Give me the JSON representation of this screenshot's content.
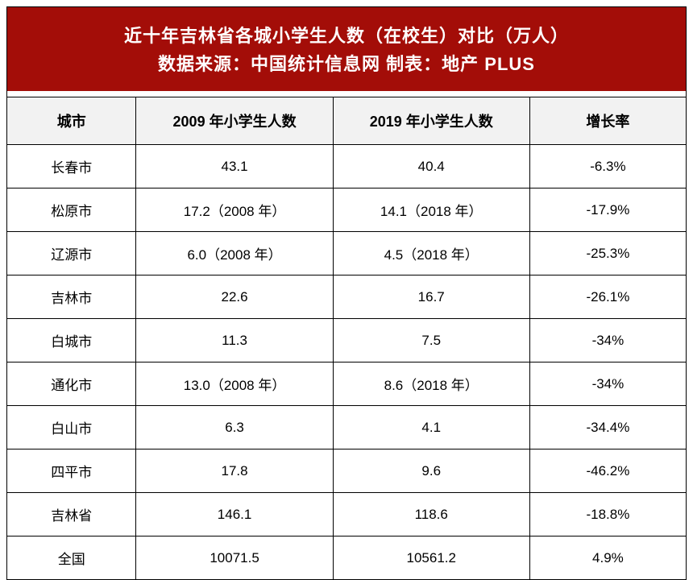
{
  "header": {
    "title_line1": "近十年吉林省各城小学生人数（在校生）对比（万人）",
    "title_line2": "数据来源：中国统计信息网 制表：地产 PLUS",
    "background_color": "#a30d08",
    "text_color": "#ffffff",
    "title_fontsize": 22
  },
  "table": {
    "header_background": "#f2f2f2",
    "border_color": "#000000",
    "cell_fontsize": 17,
    "header_fontsize": 18,
    "columns": [
      {
        "label": "城市",
        "width": "19%"
      },
      {
        "label": "2009 年小学生人数",
        "width": "29%"
      },
      {
        "label": "2019 年小学生人数",
        "width": "29%"
      },
      {
        "label": "增长率",
        "width": "23%"
      }
    ],
    "rows": [
      {
        "city": "长春市",
        "y2009": "43.1",
        "y2019": "40.4",
        "rate": "-6.3%"
      },
      {
        "city": "松原市",
        "y2009": "17.2（2008 年）",
        "y2019": "14.1（2018 年）",
        "rate": "-17.9%"
      },
      {
        "city": "辽源市",
        "y2009": "6.0（2008 年）",
        "y2019": "4.5（2018 年）",
        "rate": "-25.3%"
      },
      {
        "city": "吉林市",
        "y2009": "22.6",
        "y2019": "16.7",
        "rate": "-26.1%"
      },
      {
        "city": "白城市",
        "y2009": "11.3",
        "y2019": "7.5",
        "rate": "-34%"
      },
      {
        "city": "通化市",
        "y2009": "13.0（2008 年）",
        "y2019": "8.6（2018 年）",
        "rate": "-34%"
      },
      {
        "city": "白山市",
        "y2009": "6.3",
        "y2019": "4.1",
        "rate": "-34.4%"
      },
      {
        "city": "四平市",
        "y2009": "17.8",
        "y2019": "9.6",
        "rate": "-46.2%"
      },
      {
        "city": "吉林省",
        "y2009": "146.1",
        "y2019": "118.6",
        "rate": "-18.8%"
      },
      {
        "city": "全国",
        "y2009": "10071.5",
        "y2019": "10561.2",
        "rate": "4.9%"
      }
    ]
  }
}
